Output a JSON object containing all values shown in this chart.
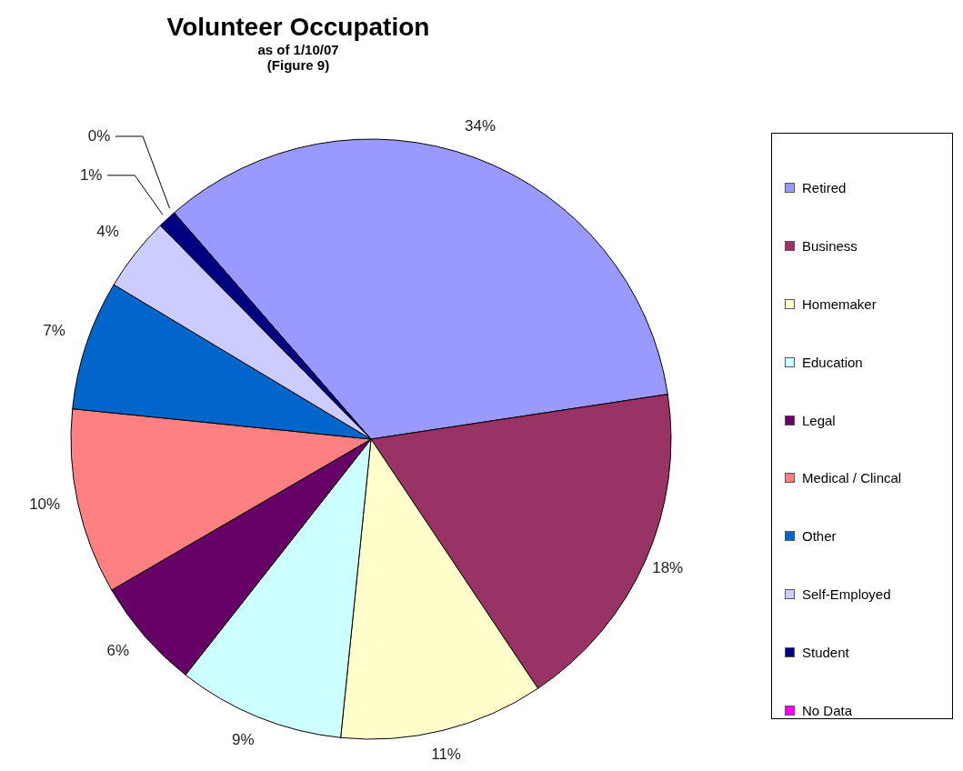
{
  "chart_data": {
    "type": "pie",
    "title": "Volunteer Occupation",
    "subtitle": "as of 1/10/07\n(Figure 9)",
    "categories": [
      "Retired",
      "Business",
      "Homemaker",
      "Education",
      "Legal",
      "Medical / Clincal",
      "Other",
      "Self-Employed",
      "Student",
      "No Data"
    ],
    "values": [
      34,
      18,
      11,
      9,
      6,
      10,
      7,
      4,
      1,
      0
    ],
    "value_labels": [
      "34%",
      "18%",
      "11%",
      "9%",
      "6%",
      "10%",
      "7%",
      "4%",
      "1%",
      "0%"
    ],
    "colors": [
      "#9999ff",
      "#993366",
      "#ffffcc",
      "#ccffff",
      "#660066",
      "#ff8080",
      "#0066cc",
      "#ccccff",
      "#000080",
      "#ff00ff"
    ],
    "legend": "right"
  }
}
